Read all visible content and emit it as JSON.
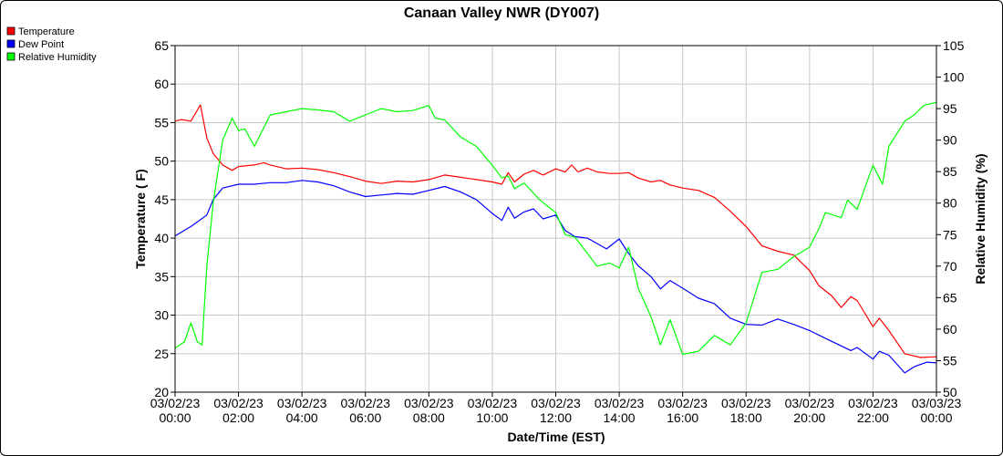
{
  "chart_data": {
    "type": "line",
    "title": "Canaan Valley NWR (DY007)",
    "xlabel": "Date/Time (EST)",
    "ylabel_left": "Temperature ( F)",
    "ylabel_right": "Relative Humidity (%)",
    "x_ticks": [
      {
        "date": "03/02/23",
        "time": "00:00"
      },
      {
        "date": "03/02/23",
        "time": "02:00"
      },
      {
        "date": "03/02/23",
        "time": "04:00"
      },
      {
        "date": "03/02/23",
        "time": "06:00"
      },
      {
        "date": "03/02/23",
        "time": "08:00"
      },
      {
        "date": "03/02/23",
        "time": "10:00"
      },
      {
        "date": "03/02/23",
        "time": "12:00"
      },
      {
        "date": "03/02/23",
        "time": "14:00"
      },
      {
        "date": "03/02/23",
        "time": "16:00"
      },
      {
        "date": "03/02/23",
        "time": "18:00"
      },
      {
        "date": "03/02/23",
        "time": "20:00"
      },
      {
        "date": "03/02/23",
        "time": "22:00"
      },
      {
        "date": "03/03/23",
        "time": "00:00"
      }
    ],
    "x_range_hours": [
      0,
      24
    ],
    "y_left_range": [
      20,
      65
    ],
    "y_left_ticks": [
      20,
      25,
      30,
      35,
      40,
      45,
      50,
      55,
      60,
      65
    ],
    "y_right_range": [
      50,
      105
    ],
    "y_right_ticks": [
      50,
      55,
      60,
      65,
      70,
      75,
      80,
      85,
      90,
      95,
      100,
      105
    ],
    "grid": true,
    "legend_placement": "top-left",
    "series": [
      {
        "name": "Temperature",
        "axis": "left",
        "color": "#ff0000",
        "points": [
          [
            0,
            55.2
          ],
          [
            0.2,
            55.4
          ],
          [
            0.5,
            55.2
          ],
          [
            0.8,
            57.3
          ],
          [
            1,
            53
          ],
          [
            1.2,
            51
          ],
          [
            1.5,
            49.5
          ],
          [
            1.8,
            48.8
          ],
          [
            2,
            49.3
          ],
          [
            2.5,
            49.5
          ],
          [
            2.8,
            49.8
          ],
          [
            3,
            49.5
          ],
          [
            3.5,
            49
          ],
          [
            4,
            49.1
          ],
          [
            4.5,
            48.9
          ],
          [
            5,
            48.5
          ],
          [
            5.5,
            48
          ],
          [
            6,
            47.4
          ],
          [
            6.5,
            47.1
          ],
          [
            7,
            47.4
          ],
          [
            7.5,
            47.3
          ],
          [
            8,
            47.6
          ],
          [
            8.5,
            48.2
          ],
          [
            9,
            47.9
          ],
          [
            9.5,
            47.6
          ],
          [
            10,
            47.3
          ],
          [
            10.3,
            47
          ],
          [
            10.5,
            48.5
          ],
          [
            10.7,
            47.3
          ],
          [
            11,
            48.3
          ],
          [
            11.3,
            48.8
          ],
          [
            11.6,
            48.2
          ],
          [
            12,
            49
          ],
          [
            12.3,
            48.6
          ],
          [
            12.5,
            49.5
          ],
          [
            12.7,
            48.6
          ],
          [
            13,
            49.1
          ],
          [
            13.3,
            48.6
          ],
          [
            13.7,
            48.4
          ],
          [
            14,
            48.4
          ],
          [
            14.3,
            48.5
          ],
          [
            14.6,
            47.8
          ],
          [
            15,
            47.3
          ],
          [
            15.3,
            47.5
          ],
          [
            15.6,
            46.9
          ],
          [
            16,
            46.5
          ],
          [
            16.5,
            46.2
          ],
          [
            17,
            45.3
          ],
          [
            17.5,
            43.5
          ],
          [
            18,
            41.5
          ],
          [
            18.5,
            39
          ],
          [
            19,
            38.3
          ],
          [
            19.5,
            37.8
          ],
          [
            20,
            35.8
          ],
          [
            20.3,
            33.8
          ],
          [
            20.7,
            32.5
          ],
          [
            21,
            31
          ],
          [
            21.3,
            32.4
          ],
          [
            21.5,
            31.9
          ],
          [
            22,
            28.5
          ],
          [
            22.2,
            29.6
          ],
          [
            22.5,
            28
          ],
          [
            23,
            25
          ],
          [
            23.5,
            24.5
          ],
          [
            24,
            24.6
          ]
        ]
      },
      {
        "name": "Dew Point",
        "axis": "left",
        "color": "#0000ff",
        "points": [
          [
            0,
            40.3
          ],
          [
            0.5,
            41.5
          ],
          [
            1,
            43
          ],
          [
            1.2,
            45
          ],
          [
            1.5,
            46.5
          ],
          [
            2,
            47
          ],
          [
            2.5,
            47
          ],
          [
            3,
            47.2
          ],
          [
            3.5,
            47.2
          ],
          [
            4,
            47.5
          ],
          [
            4.5,
            47.3
          ],
          [
            5,
            46.8
          ],
          [
            5.5,
            46
          ],
          [
            6,
            45.4
          ],
          [
            6.5,
            45.6
          ],
          [
            7,
            45.8
          ],
          [
            7.5,
            45.7
          ],
          [
            8,
            46.2
          ],
          [
            8.5,
            46.7
          ],
          [
            9,
            46
          ],
          [
            9.5,
            45
          ],
          [
            10,
            43.2
          ],
          [
            10.3,
            42.3
          ],
          [
            10.5,
            44
          ],
          [
            10.7,
            42.6
          ],
          [
            11,
            43.4
          ],
          [
            11.3,
            43.8
          ],
          [
            11.6,
            42.5
          ],
          [
            12,
            43
          ],
          [
            12.3,
            41
          ],
          [
            12.6,
            40.2
          ],
          [
            13,
            40
          ],
          [
            13.3,
            39.3
          ],
          [
            13.6,
            38.6
          ],
          [
            14,
            39.9
          ],
          [
            14.3,
            38
          ],
          [
            14.6,
            36.4
          ],
          [
            15,
            35
          ],
          [
            15.3,
            33.4
          ],
          [
            15.6,
            34.5
          ],
          [
            16,
            33.5
          ],
          [
            16.5,
            32.2
          ],
          [
            17,
            31.5
          ],
          [
            17.5,
            29.6
          ],
          [
            18,
            28.8
          ],
          [
            18.5,
            28.7
          ],
          [
            19,
            29.5
          ],
          [
            19.5,
            28.8
          ],
          [
            20,
            28
          ],
          [
            20.5,
            27
          ],
          [
            21,
            26
          ],
          [
            21.3,
            25.4
          ],
          [
            21.5,
            25.8
          ],
          [
            22,
            24.3
          ],
          [
            22.2,
            25.3
          ],
          [
            22.5,
            24.8
          ],
          [
            23,
            22.5
          ],
          [
            23.3,
            23.3
          ],
          [
            23.7,
            23.9
          ],
          [
            24,
            23.8
          ]
        ]
      },
      {
        "name": "Relative Humidity",
        "axis": "right",
        "color": "#00ff00",
        "points": [
          [
            0,
            57
          ],
          [
            0.3,
            58
          ],
          [
            0.5,
            61
          ],
          [
            0.7,
            58
          ],
          [
            0.85,
            57.5
          ],
          [
            1,
            70
          ],
          [
            1.2,
            80
          ],
          [
            1.5,
            90
          ],
          [
            1.8,
            93.5
          ],
          [
            2,
            91.5
          ],
          [
            2.2,
            91.8
          ],
          [
            2.5,
            89
          ],
          [
            2.8,
            92
          ],
          [
            3,
            94
          ],
          [
            3.5,
            94.5
          ],
          [
            4,
            95
          ],
          [
            4.5,
            94.8
          ],
          [
            5,
            94.5
          ],
          [
            5.5,
            93
          ],
          [
            6,
            94
          ],
          [
            6.5,
            95
          ],
          [
            7,
            94.5
          ],
          [
            7.5,
            94.7
          ],
          [
            8,
            95.5
          ],
          [
            8.2,
            93.5
          ],
          [
            8.5,
            93.2
          ],
          [
            9,
            90.5
          ],
          [
            9.5,
            89
          ],
          [
            10,
            86
          ],
          [
            10.3,
            84
          ],
          [
            10.5,
            84.3
          ],
          [
            10.7,
            82.3
          ],
          [
            11,
            83.2
          ],
          [
            11.5,
            80.5
          ],
          [
            12,
            78.5
          ],
          [
            12.3,
            75
          ],
          [
            12.6,
            74.6
          ],
          [
            13,
            72
          ],
          [
            13.3,
            70
          ],
          [
            13.7,
            70.5
          ],
          [
            14,
            69.7
          ],
          [
            14.3,
            73
          ],
          [
            14.6,
            66.5
          ],
          [
            15,
            62
          ],
          [
            15.3,
            57.5
          ],
          [
            15.6,
            61.5
          ],
          [
            16,
            56
          ],
          [
            16.5,
            56.5
          ],
          [
            17,
            59
          ],
          [
            17.5,
            57.5
          ],
          [
            18,
            61
          ],
          [
            18.5,
            69
          ],
          [
            19,
            69.5
          ],
          [
            19.5,
            71.5
          ],
          [
            20,
            73
          ],
          [
            20.3,
            76
          ],
          [
            20.5,
            78.5
          ],
          [
            21,
            77.7
          ],
          [
            21.2,
            80.5
          ],
          [
            21.5,
            79
          ],
          [
            22,
            86
          ],
          [
            22.3,
            83
          ],
          [
            22.5,
            89
          ],
          [
            23,
            93
          ],
          [
            23.3,
            94
          ],
          [
            23.6,
            95.5
          ],
          [
            24,
            96
          ]
        ]
      }
    ]
  }
}
